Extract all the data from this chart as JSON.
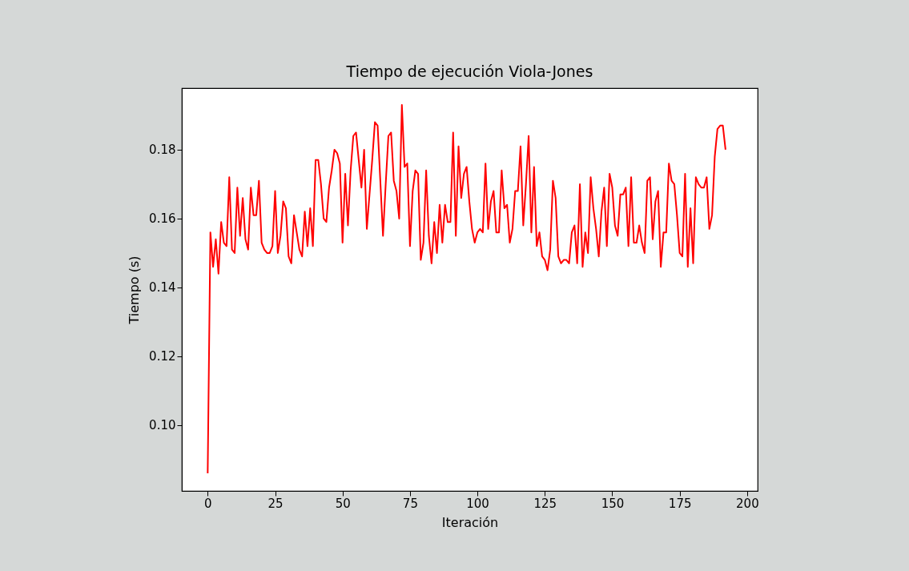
{
  "chart_data": {
    "type": "line",
    "title": "Tiempo de ejecución Viola-Jones",
    "xlabel": "Iteración",
    "ylabel": "Tiempo (s)",
    "x": [
      0,
      1,
      2,
      3,
      4,
      5,
      6,
      7,
      8,
      9,
      10,
      11,
      12,
      13,
      14,
      15,
      16,
      17,
      18,
      19,
      20,
      21,
      22,
      23,
      24,
      25,
      26,
      27,
      28,
      29,
      30,
      31,
      32,
      33,
      34,
      35,
      36,
      37,
      38,
      39,
      40,
      41,
      42,
      43,
      44,
      45,
      46,
      47,
      48,
      49,
      50,
      51,
      52,
      53,
      54,
      55,
      56,
      57,
      58,
      59,
      60,
      61,
      62,
      63,
      64,
      65,
      66,
      67,
      68,
      69,
      70,
      71,
      72,
      73,
      74,
      75,
      76,
      77,
      78,
      79,
      80,
      81,
      82,
      83,
      84,
      85,
      86,
      87,
      88,
      89,
      90,
      91,
      92,
      93,
      94,
      95,
      96,
      97,
      98,
      99,
      100,
      101,
      102,
      103,
      104,
      105,
      106,
      107,
      108,
      109,
      110,
      111,
      112,
      113,
      114,
      115,
      116,
      117,
      118,
      119,
      120,
      121,
      122,
      123,
      124,
      125,
      126,
      127,
      128,
      129,
      130,
      131,
      132,
      133,
      134,
      135,
      136,
      137,
      138,
      139,
      140,
      141,
      142,
      143,
      144,
      145,
      146,
      147,
      148,
      149,
      150,
      151,
      152,
      153,
      154,
      155,
      156,
      157,
      158,
      159,
      160,
      161,
      162,
      163,
      164,
      165,
      166,
      167,
      168,
      169,
      170,
      171,
      172,
      173,
      174,
      175,
      176,
      177,
      178,
      179,
      180,
      181,
      182,
      183,
      184,
      185,
      186,
      187,
      188,
      189,
      190,
      191,
      192
    ],
    "series": [
      {
        "color": "#ff0000",
        "values": [
          0.086,
          0.156,
          0.146,
          0.154,
          0.144,
          0.159,
          0.153,
          0.152,
          0.172,
          0.151,
          0.15,
          0.169,
          0.155,
          0.166,
          0.154,
          0.151,
          0.169,
          0.161,
          0.161,
          0.171,
          0.153,
          0.151,
          0.15,
          0.15,
          0.152,
          0.168,
          0.15,
          0.155,
          0.165,
          0.163,
          0.149,
          0.147,
          0.161,
          0.156,
          0.151,
          0.149,
          0.162,
          0.152,
          0.163,
          0.152,
          0.177,
          0.177,
          0.17,
          0.16,
          0.159,
          0.169,
          0.174,
          0.18,
          0.179,
          0.176,
          0.153,
          0.173,
          0.158,
          0.174,
          0.184,
          0.185,
          0.177,
          0.169,
          0.18,
          0.157,
          0.167,
          0.177,
          0.188,
          0.187,
          0.171,
          0.155,
          0.17,
          0.184,
          0.185,
          0.171,
          0.168,
          0.16,
          0.193,
          0.175,
          0.176,
          0.152,
          0.168,
          0.174,
          0.173,
          0.148,
          0.153,
          0.174,
          0.155,
          0.147,
          0.159,
          0.15,
          0.164,
          0.153,
          0.164,
          0.159,
          0.159,
          0.185,
          0.155,
          0.181,
          0.166,
          0.173,
          0.175,
          0.165,
          0.157,
          0.153,
          0.156,
          0.157,
          0.156,
          0.176,
          0.157,
          0.165,
          0.168,
          0.156,
          0.156,
          0.174,
          0.163,
          0.164,
          0.153,
          0.157,
          0.168,
          0.168,
          0.181,
          0.158,
          0.17,
          0.184,
          0.156,
          0.175,
          0.152,
          0.156,
          0.149,
          0.148,
          0.145,
          0.151,
          0.171,
          0.166,
          0.149,
          0.147,
          0.148,
          0.148,
          0.147,
          0.156,
          0.158,
          0.147,
          0.17,
          0.146,
          0.156,
          0.15,
          0.172,
          0.163,
          0.157,
          0.149,
          0.162,
          0.169,
          0.152,
          0.173,
          0.169,
          0.158,
          0.155,
          0.167,
          0.167,
          0.169,
          0.152,
          0.172,
          0.153,
          0.153,
          0.158,
          0.153,
          0.15,
          0.171,
          0.172,
          0.154,
          0.165,
          0.168,
          0.146,
          0.156,
          0.156,
          0.176,
          0.171,
          0.17,
          0.161,
          0.15,
          0.149,
          0.173,
          0.146,
          0.163,
          0.147,
          0.172,
          0.17,
          0.169,
          0.169,
          0.172,
          0.157,
          0.161,
          0.178,
          0.186,
          0.187,
          0.187,
          0.18
        ]
      }
    ],
    "xlim": [
      -9.6,
      203.9
    ],
    "ylim": [
      0.0809,
      0.1979
    ],
    "xticks": [
      0,
      25,
      50,
      75,
      100,
      125,
      150,
      175,
      200
    ],
    "yticks": [
      {
        "value": 0.1,
        "label": "0.10"
      },
      {
        "value": 0.12,
        "label": "0.12"
      },
      {
        "value": 0.14,
        "label": "0.14"
      },
      {
        "value": 0.16,
        "label": "0.16"
      },
      {
        "value": 0.18,
        "label": "0.18"
      }
    ],
    "grid": false,
    "marker": "none",
    "line_style": "solid"
  }
}
